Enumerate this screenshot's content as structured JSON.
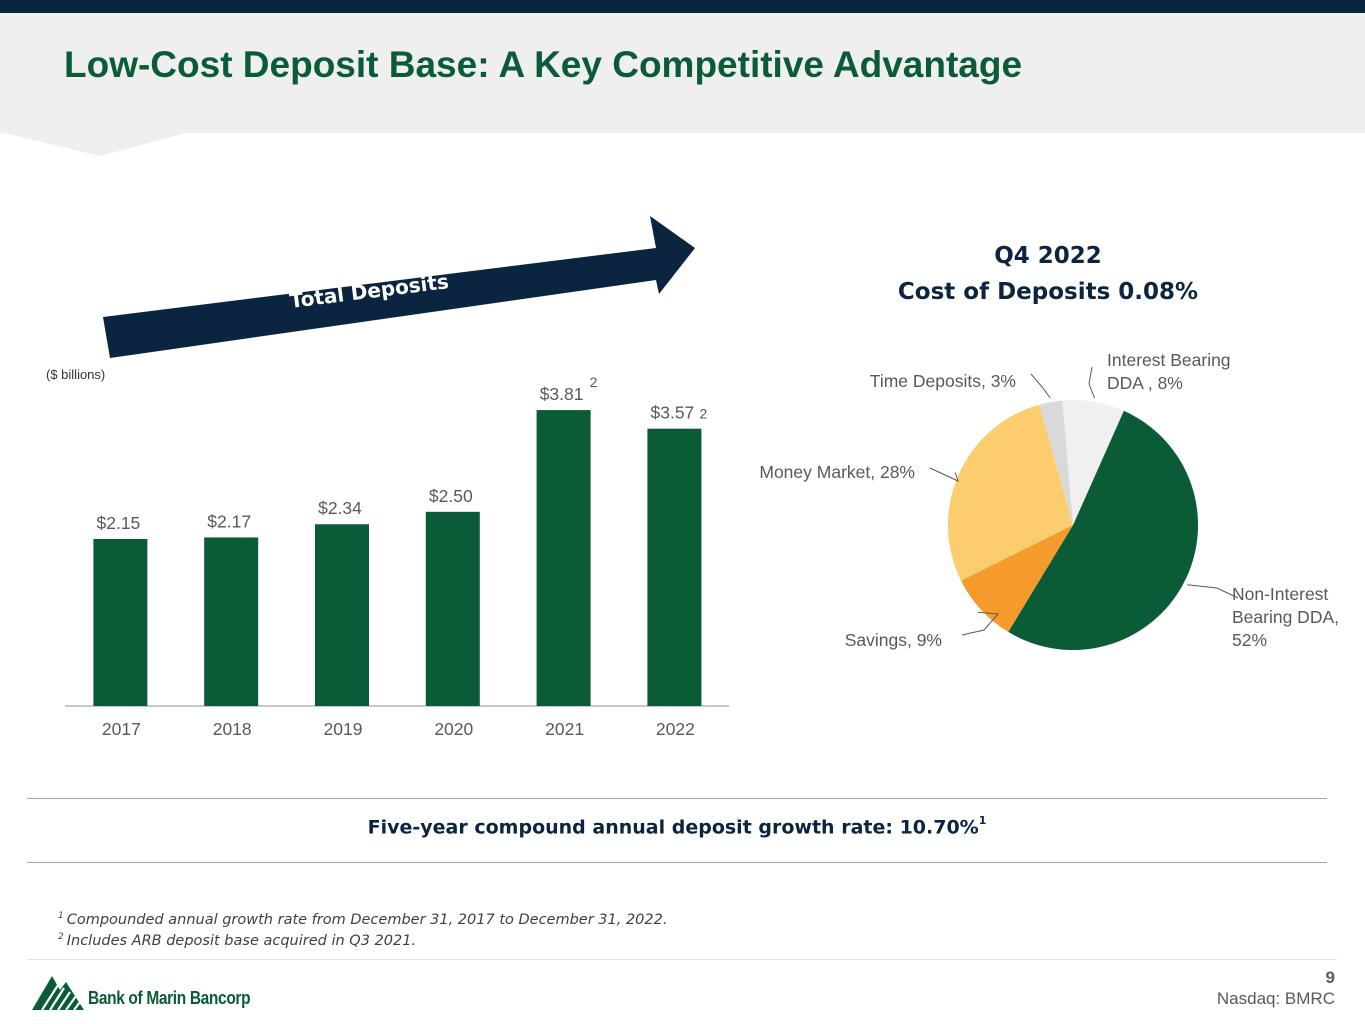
{
  "page": {
    "title": "Low-Cost Deposit Base: A Key Competitive Advantage",
    "page_number": "9",
    "ticker": "Nasdaq: BMRC",
    "company": "Bank of Marin Bancorp"
  },
  "colors": {
    "brand_green": "#0b5c36",
    "navy": "#0b2440",
    "pie_orange": "#f59b2b",
    "pie_yellow": "#fccd6e",
    "pie_gray": "#d9d9d9",
    "pie_light": "#f0f0f0"
  },
  "arrow": {
    "label": "Total Deposits"
  },
  "units_label": "($ billions)",
  "pie_title": {
    "line1": "Q4 2022",
    "line2": "Cost of Deposits 0.08%"
  },
  "summary": {
    "text": "Five-year compound annual deposit growth rate: 10.70%",
    "sup": "1"
  },
  "footnotes": [
    {
      "num": "1",
      "text": "Compounded annual growth rate from December 31, 2017 to December 31, 2022."
    },
    {
      "num": "2",
      "text": "Includes ARB deposit base acquired in Q3 2021."
    }
  ],
  "chart_data": [
    {
      "type": "bar",
      "title": "Total Deposits",
      "ylabel": "($ billions)",
      "categories": [
        "2017",
        "2018",
        "2019",
        "2020",
        "2021",
        "2022"
      ],
      "values": [
        2.15,
        2.17,
        2.34,
        2.5,
        3.81,
        3.57
      ],
      "labels": [
        "$2.15",
        "$2.17",
        "$2.34",
        "$2.50",
        "$3.81",
        "$3.57"
      ],
      "label_footnotes": [
        "",
        "",
        "",
        "",
        "2",
        "2"
      ],
      "ylim": [
        0,
        4.3
      ],
      "color": "#0b5c36"
    },
    {
      "type": "pie",
      "title": "Q4 2022 Cost of Deposits 0.08%",
      "slices": [
        {
          "name": "Non-Interest Bearing DDA",
          "value": 52,
          "label_lines": [
            "Non-Interest",
            "Bearing DDA,",
            "52%"
          ],
          "color": "#0b5c36"
        },
        {
          "name": "Savings",
          "value": 9,
          "label_lines": [
            "Savings, 9%"
          ],
          "color": "#f59b2b"
        },
        {
          "name": "Money Market",
          "value": 28,
          "label_lines": [
            "Money Market, 28%"
          ],
          "color": "#fccd6e"
        },
        {
          "name": "Time Deposits",
          "value": 3,
          "label_lines": [
            "Time Deposits, 3%"
          ],
          "color": "#d9d9d9"
        },
        {
          "name": "Interest Bearing DDA",
          "value": 8,
          "label_lines": [
            "Interest Bearing",
            "DDA , 8%"
          ],
          "color": "#f0f0f0"
        }
      ]
    }
  ]
}
